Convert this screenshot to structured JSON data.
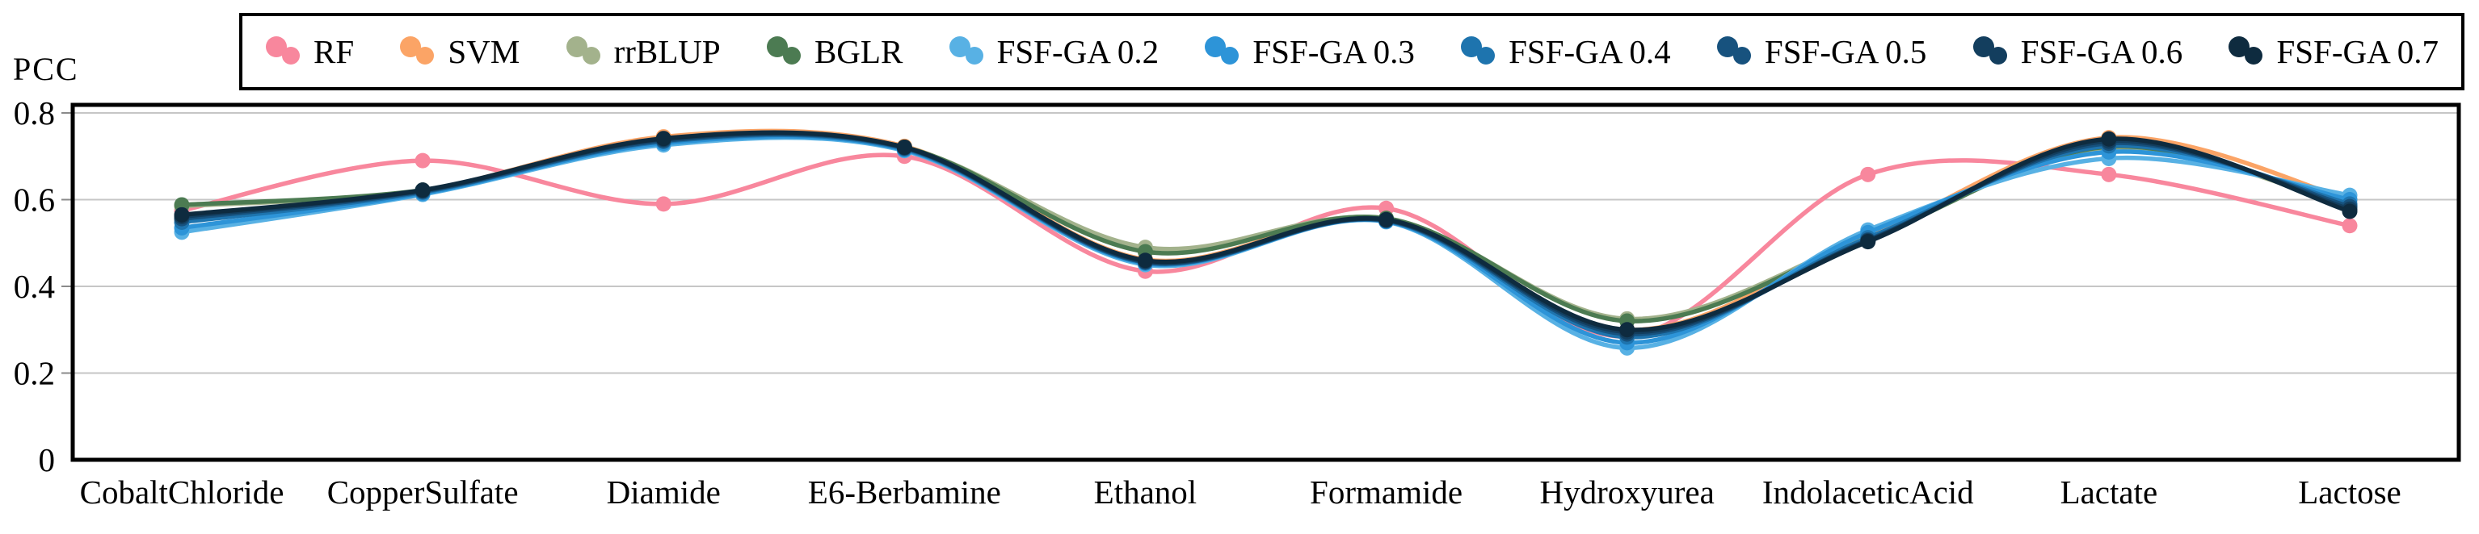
{
  "chart_data": {
    "type": "line",
    "title": "",
    "ylabel": "PCC",
    "xlabel": "",
    "ylim": [
      0,
      0.82
    ],
    "grid": "horizontal",
    "legend_position": "top",
    "legend_marker": "two-dots",
    "y_tick_labels": [
      "0",
      "0.2",
      "0.4",
      "0.6",
      "0.8"
    ],
    "y_tick_values": [
      0,
      0.2,
      0.4,
      0.6,
      0.8
    ],
    "categories": [
      "CobaltChloride",
      "CopperSulfate",
      "Diamide",
      "E6-Berbamine",
      "Ethanol",
      "Formamide",
      "Hydroxyurea",
      "IndolaceticAcid",
      "Lactate",
      "Lactose"
    ],
    "series": [
      {
        "name": "RF",
        "color": "#F8879D",
        "values": [
          0.575,
          0.69,
          0.59,
          0.7,
          0.435,
          0.58,
          0.285,
          0.658,
          0.658,
          0.54
        ]
      },
      {
        "name": "SVM",
        "color": "#FBA466",
        "values": [
          0.555,
          0.62,
          0.745,
          0.723,
          0.462,
          0.556,
          0.3,
          0.515,
          0.743,
          0.6
        ]
      },
      {
        "name": "rrBLUP",
        "color": "#A3B28C",
        "values": [
          0.585,
          0.621,
          0.736,
          0.72,
          0.49,
          0.556,
          0.325,
          0.513,
          0.72,
          0.585
        ]
      },
      {
        "name": "BGLR",
        "color": "#4C7B52",
        "values": [
          0.588,
          0.622,
          0.737,
          0.721,
          0.48,
          0.557,
          0.32,
          0.51,
          0.722,
          0.586
        ]
      },
      {
        "name": "FSF-GA 0.2",
        "color": "#58B1E4",
        "values": [
          0.525,
          0.612,
          0.726,
          0.713,
          0.45,
          0.549,
          0.258,
          0.53,
          0.695,
          0.61
        ]
      },
      {
        "name": "FSF-GA 0.3",
        "color": "#2D94D8",
        "values": [
          0.535,
          0.614,
          0.73,
          0.715,
          0.453,
          0.55,
          0.27,
          0.524,
          0.71,
          0.6
        ]
      },
      {
        "name": "FSF-GA 0.4",
        "color": "#1E74AE",
        "values": [
          0.548,
          0.617,
          0.734,
          0.717,
          0.455,
          0.551,
          0.283,
          0.512,
          0.724,
          0.59
        ]
      },
      {
        "name": "FSF-GA 0.5",
        "color": "#17527E",
        "values": [
          0.556,
          0.619,
          0.736,
          0.719,
          0.456,
          0.552,
          0.29,
          0.507,
          0.73,
          0.584
        ]
      },
      {
        "name": "FSF-GA 0.6",
        "color": "#133E5E",
        "values": [
          0.561,
          0.621,
          0.739,
          0.72,
          0.458,
          0.553,
          0.295,
          0.505,
          0.735,
          0.578
        ]
      },
      {
        "name": "FSF-GA 0.7",
        "color": "#0E2B3F",
        "values": [
          0.565,
          0.622,
          0.741,
          0.721,
          0.46,
          0.554,
          0.3,
          0.503,
          0.74,
          0.573
        ]
      }
    ]
  },
  "colors": {
    "background": "#FFFFFF",
    "frame": "#000000",
    "gridline": "#C6C6C6",
    "tick": "#8A8A8A",
    "text": "#000000"
  }
}
